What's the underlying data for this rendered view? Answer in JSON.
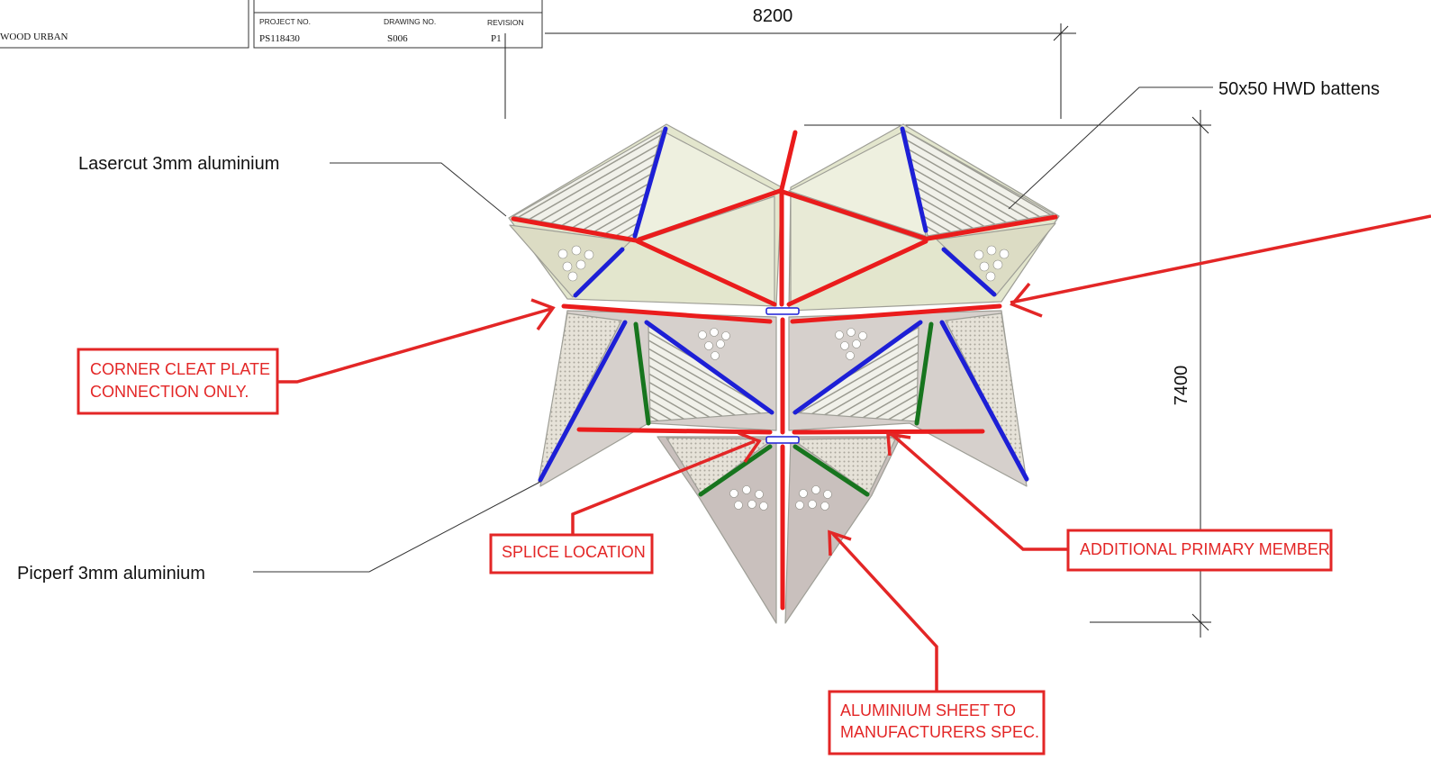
{
  "title_block": {
    "company": "WOOD URBAN",
    "project_no_label": "PROJECT NO.",
    "project_no": "PS118430",
    "drawing_no_label": "DRAWING NO.",
    "drawing_no": "S006",
    "revision_label": "REVISION",
    "revision": "P1"
  },
  "dimensions": {
    "width": "8200",
    "height": "7400"
  },
  "notes": {
    "lasercut": "Lasercut 3mm aluminium",
    "picperf": "Picperf 3mm aluminium",
    "battens": "50x50 HWD battens"
  },
  "red_callouts": {
    "corner_cleat_line1": "CORNER CLEAT PLATE",
    "corner_cleat_line2": "CONNECTION ONLY.",
    "splice": "SPLICE LOCATION",
    "additional_primary": "ADDITIONAL PRIMARY MEMBER",
    "aluminium_line1": "ALUMINIUM SHEET TO",
    "aluminium_line2": "MANUFACTURERS SPEC."
  },
  "colors": {
    "primary_member": "#ea1c1c",
    "secondary_member": "#1d1fd6",
    "tertiary_member": "#17751e",
    "panel_green": "#e3e6cd",
    "panel_grey": "#d6d0cc",
    "panel_mauve": "#c9c0bd",
    "markup_red": "#e32626"
  }
}
